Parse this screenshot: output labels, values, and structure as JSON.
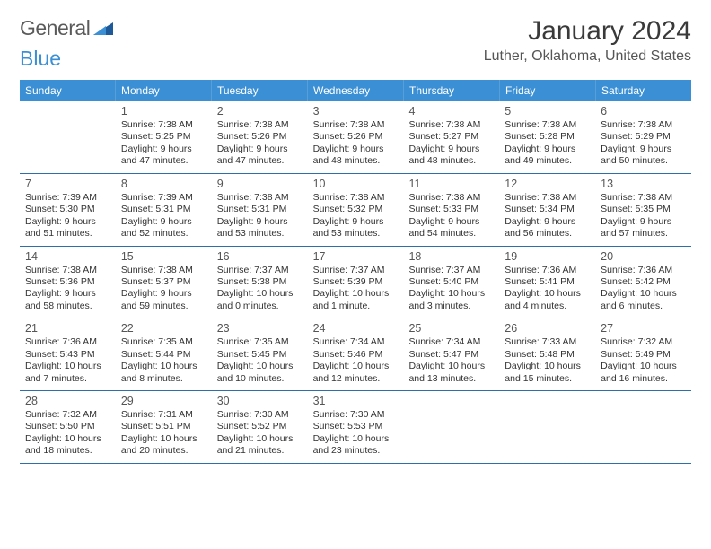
{
  "brand": {
    "word1": "General",
    "word2": "Blue"
  },
  "title": "January 2024",
  "location": "Luther, Oklahoma, United States",
  "colors": {
    "header_bg": "#3b8fd4",
    "header_text": "#ffffff",
    "row_border": "#2f6fa8",
    "text": "#333333",
    "title_text": "#3a3a3a",
    "brand_gray": "#5a5a5a",
    "brand_blue": "#3b8fd4"
  },
  "weekdays": [
    "Sunday",
    "Monday",
    "Tuesday",
    "Wednesday",
    "Thursday",
    "Friday",
    "Saturday"
  ],
  "weeks": [
    [
      null,
      {
        "n": "1",
        "sr": "7:38 AM",
        "ss": "5:25 PM",
        "dl": "9 hours and 47 minutes."
      },
      {
        "n": "2",
        "sr": "7:38 AM",
        "ss": "5:26 PM",
        "dl": "9 hours and 47 minutes."
      },
      {
        "n": "3",
        "sr": "7:38 AM",
        "ss": "5:26 PM",
        "dl": "9 hours and 48 minutes."
      },
      {
        "n": "4",
        "sr": "7:38 AM",
        "ss": "5:27 PM",
        "dl": "9 hours and 48 minutes."
      },
      {
        "n": "5",
        "sr": "7:38 AM",
        "ss": "5:28 PM",
        "dl": "9 hours and 49 minutes."
      },
      {
        "n": "6",
        "sr": "7:38 AM",
        "ss": "5:29 PM",
        "dl": "9 hours and 50 minutes."
      }
    ],
    [
      {
        "n": "7",
        "sr": "7:39 AM",
        "ss": "5:30 PM",
        "dl": "9 hours and 51 minutes."
      },
      {
        "n": "8",
        "sr": "7:39 AM",
        "ss": "5:31 PM",
        "dl": "9 hours and 52 minutes."
      },
      {
        "n": "9",
        "sr": "7:38 AM",
        "ss": "5:31 PM",
        "dl": "9 hours and 53 minutes."
      },
      {
        "n": "10",
        "sr": "7:38 AM",
        "ss": "5:32 PM",
        "dl": "9 hours and 53 minutes."
      },
      {
        "n": "11",
        "sr": "7:38 AM",
        "ss": "5:33 PM",
        "dl": "9 hours and 54 minutes."
      },
      {
        "n": "12",
        "sr": "7:38 AM",
        "ss": "5:34 PM",
        "dl": "9 hours and 56 minutes."
      },
      {
        "n": "13",
        "sr": "7:38 AM",
        "ss": "5:35 PM",
        "dl": "9 hours and 57 minutes."
      }
    ],
    [
      {
        "n": "14",
        "sr": "7:38 AM",
        "ss": "5:36 PM",
        "dl": "9 hours and 58 minutes."
      },
      {
        "n": "15",
        "sr": "7:38 AM",
        "ss": "5:37 PM",
        "dl": "9 hours and 59 minutes."
      },
      {
        "n": "16",
        "sr": "7:37 AM",
        "ss": "5:38 PM",
        "dl": "10 hours and 0 minutes."
      },
      {
        "n": "17",
        "sr": "7:37 AM",
        "ss": "5:39 PM",
        "dl": "10 hours and 1 minute."
      },
      {
        "n": "18",
        "sr": "7:37 AM",
        "ss": "5:40 PM",
        "dl": "10 hours and 3 minutes."
      },
      {
        "n": "19",
        "sr": "7:36 AM",
        "ss": "5:41 PM",
        "dl": "10 hours and 4 minutes."
      },
      {
        "n": "20",
        "sr": "7:36 AM",
        "ss": "5:42 PM",
        "dl": "10 hours and 6 minutes."
      }
    ],
    [
      {
        "n": "21",
        "sr": "7:36 AM",
        "ss": "5:43 PM",
        "dl": "10 hours and 7 minutes."
      },
      {
        "n": "22",
        "sr": "7:35 AM",
        "ss": "5:44 PM",
        "dl": "10 hours and 8 minutes."
      },
      {
        "n": "23",
        "sr": "7:35 AM",
        "ss": "5:45 PM",
        "dl": "10 hours and 10 minutes."
      },
      {
        "n": "24",
        "sr": "7:34 AM",
        "ss": "5:46 PM",
        "dl": "10 hours and 12 minutes."
      },
      {
        "n": "25",
        "sr": "7:34 AM",
        "ss": "5:47 PM",
        "dl": "10 hours and 13 minutes."
      },
      {
        "n": "26",
        "sr": "7:33 AM",
        "ss": "5:48 PM",
        "dl": "10 hours and 15 minutes."
      },
      {
        "n": "27",
        "sr": "7:32 AM",
        "ss": "5:49 PM",
        "dl": "10 hours and 16 minutes."
      }
    ],
    [
      {
        "n": "28",
        "sr": "7:32 AM",
        "ss": "5:50 PM",
        "dl": "10 hours and 18 minutes."
      },
      {
        "n": "29",
        "sr": "7:31 AM",
        "ss": "5:51 PM",
        "dl": "10 hours and 20 minutes."
      },
      {
        "n": "30",
        "sr": "7:30 AM",
        "ss": "5:52 PM",
        "dl": "10 hours and 21 minutes."
      },
      {
        "n": "31",
        "sr": "7:30 AM",
        "ss": "5:53 PM",
        "dl": "10 hours and 23 minutes."
      },
      null,
      null,
      null
    ]
  ],
  "labels": {
    "sunrise": "Sunrise:",
    "sunset": "Sunset:",
    "daylight": "Daylight:"
  }
}
